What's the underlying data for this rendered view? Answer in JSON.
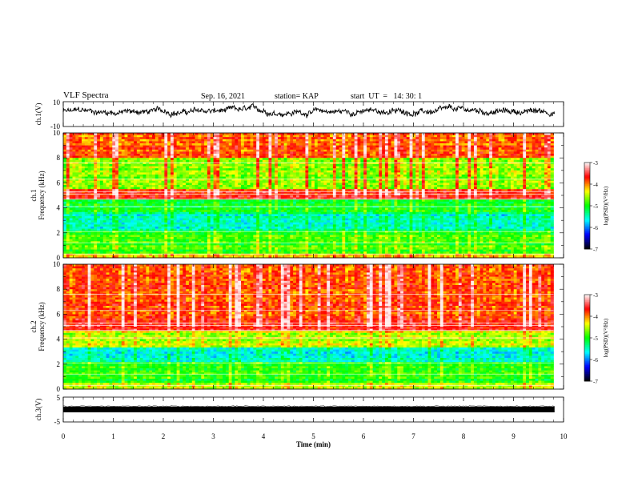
{
  "header": {
    "title": "VLF Spectra",
    "date": "Sep. 16, 2021",
    "station": "station= KAP",
    "start": "start  UT  =   14: 30: 1"
  },
  "chart_data": [
    {
      "type": "line",
      "panel": "ch1-waveform",
      "ylabel": "ch.1(V)",
      "ylim": [
        -10,
        10
      ],
      "yticks": [
        "10",
        "-10"
      ],
      "xlim": [
        0,
        10
      ],
      "approx_level": 2
    },
    {
      "type": "heatmap",
      "panel": "ch1-spectrogram",
      "ylabel": "ch.1\nFrequency (kHz)",
      "ylabel_line1": "ch.1",
      "ylabel_line2": "Frequency (kHz)",
      "ylim": [
        0,
        10
      ],
      "yticks": [
        "0",
        "2",
        "4",
        "6",
        "8",
        "10"
      ],
      "xlim": [
        0,
        9.8
      ],
      "colorbar": {
        "label": "log(PSD)(V²/Hz)",
        "range": [
          -7,
          -3
        ],
        "ticks": [
          "-3",
          "-4",
          "-5",
          "-6",
          "-7"
        ]
      },
      "bands": [
        {
          "f": [
            0,
            0.4
          ],
          "level": -4.2
        },
        {
          "f": [
            0.4,
            2.2
          ],
          "level": -4.9
        },
        {
          "f": [
            2.2,
            3.5
          ],
          "level": -5.5
        },
        {
          "f": [
            3.5,
            4.6
          ],
          "level": -5.1
        },
        {
          "f": [
            4.6,
            5.5
          ],
          "level": -3.7
        },
        {
          "f": [
            5.5,
            8.0
          ],
          "level": -4.6
        },
        {
          "f": [
            8.0,
            10.0
          ],
          "level": -3.9
        }
      ]
    },
    {
      "type": "heatmap",
      "panel": "ch2-spectrogram",
      "ylabel": "ch.2\nFrequency (kHz)",
      "ylabel_line1": "ch.2",
      "ylabel_line2": "Frequency (kHz)",
      "ylim": [
        0,
        10
      ],
      "yticks": [
        "0",
        "2",
        "4",
        "6",
        "8",
        "10"
      ],
      "xlim": [
        0,
        9.8
      ],
      "colorbar": {
        "label": "log(PSD)(V²/Hz)",
        "range": [
          -7,
          -3
        ],
        "ticks": [
          "-3",
          "-4",
          "-5",
          "-6",
          "-7"
        ]
      },
      "bands": [
        {
          "f": [
            0,
            0.5
          ],
          "level": -4.4
        },
        {
          "f": [
            0.5,
            2.2
          ],
          "level": -5.0
        },
        {
          "f": [
            2.2,
            3.3
          ],
          "level": -5.6
        },
        {
          "f": [
            3.3,
            4.6
          ],
          "level": -4.5
        },
        {
          "f": [
            4.6,
            5.6
          ],
          "level": -3.6
        },
        {
          "f": [
            5.6,
            10.0
          ],
          "level": -3.8
        }
      ]
    },
    {
      "type": "line",
      "panel": "ch3-waveform",
      "ylabel": "ch.3(V)",
      "ylim": [
        -5,
        5
      ],
      "yticks": [
        "5",
        "-5"
      ],
      "xlim": [
        0,
        10
      ],
      "approx_level": 0
    }
  ],
  "xaxis": {
    "label": "Time  (min)",
    "range": [
      0,
      10
    ],
    "ticks": [
      "0",
      "1",
      "2",
      "3",
      "4",
      "5",
      "6",
      "7",
      "8",
      "9",
      "10"
    ]
  },
  "colormap": [
    "#000000",
    "#0000ff",
    "#00ffff",
    "#00ff00",
    "#ffff00",
    "#ff0000",
    "#ffffff"
  ]
}
